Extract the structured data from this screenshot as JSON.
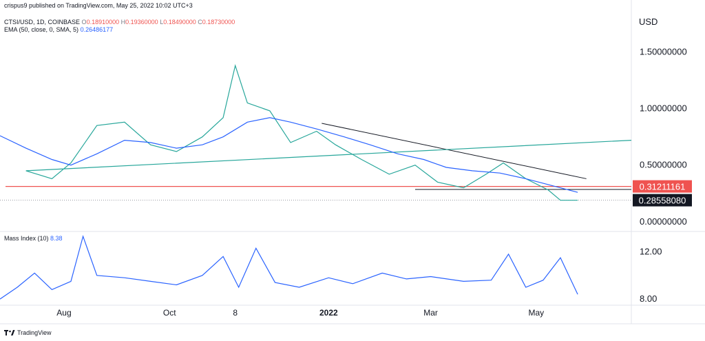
{
  "publisher": "crispus9 published on TradingView.com, May 25, 2022 10:02 UTC+3",
  "header": {
    "symbol": "CTSI/USD, 1D, COINBASE",
    "ohlc": [
      {
        "k": "O",
        "v": "0.18910000"
      },
      {
        "k": "H",
        "v": "0.19360000"
      },
      {
        "k": "L",
        "v": "0.18490000"
      },
      {
        "k": "C",
        "v": "0.18730000"
      }
    ],
    "ema_label": "EMA (50, close, 0, SMA, 5)",
    "ema_value": "0.26486177"
  },
  "mass_index": {
    "label": "Mass Index (10)",
    "value": "8.38"
  },
  "footer": {
    "brand": "TradingView"
  },
  "colors": {
    "up": "#26a69a",
    "down": "#ef5350",
    "ema": "#2962ff",
    "support": "#ef5350",
    "trend": "#131722",
    "mass": "#2962ff"
  },
  "chart_data": [
    {
      "type": "line",
      "series": [
        {
          "name": "CTSI/USD",
          "x": [
            "2022-06-25",
            "2021-07-10",
            "2021-07-25",
            "2021-08-05",
            "2021-08-20",
            "2021-09-05",
            "2021-09-20",
            "2021-10-05",
            "2021-10-20",
            "2021-11-01",
            "2021-11-08",
            "2021-11-15",
            "2021-11-28",
            "2021-12-10",
            "2021-12-25",
            "2022-01-05",
            "2022-01-20",
            "2022-02-05",
            "2022-02-20",
            "2022-03-05",
            "2022-03-20",
            "2022-04-02",
            "2022-04-12",
            "2022-04-25",
            "2022-05-08",
            "2022-05-15",
            "2022-05-25"
          ],
          "values": [
            0.72,
            0.45,
            0.38,
            0.52,
            0.85,
            0.88,
            0.68,
            0.62,
            0.75,
            0.92,
            1.38,
            1.05,
            0.98,
            0.7,
            0.8,
            0.68,
            0.55,
            0.42,
            0.5,
            0.35,
            0.3,
            0.42,
            0.52,
            0.38,
            0.28,
            0.19,
            0.19
          ]
        },
        {
          "name": "EMA (50, close, 0, SMA, 5)",
          "x": [
            "2021-06-25",
            "2021-07-10",
            "2021-07-25",
            "2021-08-05",
            "2021-08-20",
            "2021-09-05",
            "2021-09-20",
            "2021-10-05",
            "2021-10-20",
            "2021-11-01",
            "2021-11-15",
            "2021-11-28",
            "2021-12-10",
            "2021-12-25",
            "2022-01-10",
            "2022-01-25",
            "2022-02-10",
            "2022-02-25",
            "2022-03-10",
            "2022-03-25",
            "2022-04-10",
            "2022-04-25",
            "2022-05-10",
            "2022-05-25"
          ],
          "values": [
            0.76,
            0.65,
            0.55,
            0.5,
            0.6,
            0.72,
            0.7,
            0.65,
            0.68,
            0.75,
            0.88,
            0.92,
            0.88,
            0.82,
            0.75,
            0.68,
            0.6,
            0.55,
            0.48,
            0.45,
            0.43,
            0.38,
            0.32,
            0.26
          ]
        }
      ],
      "xticks": [
        "Aug",
        "Oct",
        "8",
        "2022",
        "Mar",
        "May"
      ],
      "yticks": [
        "1.50000000",
        "1.00000000",
        "0.50000000",
        "0.00000000"
      ],
      "ylabel": "USD",
      "ylim": [
        -0.08,
        1.85
      ],
      "price_labels": [
        {
          "value": 0.31211161,
          "label": "0.31211161",
          "color": "#ef5350"
        },
        {
          "value": 0.2855808,
          "label": "0.28558080",
          "color": "#131722"
        }
      ],
      "annotations": [
        {
          "kind": "horizontal",
          "value": 0.31211161,
          "color": "#ef5350"
        },
        {
          "kind": "horizontal",
          "value": 0.2855808,
          "color": "#131722"
        },
        {
          "kind": "trendline",
          "from": {
            "x": "2021-12-28",
            "y": 0.87
          },
          "to": {
            "x": "2022-05-30",
            "y": 0.38
          }
        }
      ]
    },
    {
      "type": "line",
      "series": [
        {
          "name": "Mass Index (10)",
          "x": [
            "2021-06-25",
            "2021-07-05",
            "2021-07-15",
            "2021-07-25",
            "2021-08-05",
            "2021-08-12",
            "2021-08-20",
            "2021-09-05",
            "2021-09-20",
            "2021-10-05",
            "2021-10-20",
            "2021-11-01",
            "2021-11-10",
            "2021-11-20",
            "2021-12-01",
            "2021-12-15",
            "2022-01-01",
            "2022-01-15",
            "2022-02-01",
            "2022-02-15",
            "2022-03-01",
            "2022-03-20",
            "2022-04-05",
            "2022-04-15",
            "2022-04-25",
            "2022-05-05",
            "2022-05-15",
            "2022-05-25"
          ],
          "values": [
            8.0,
            9.0,
            10.2,
            8.8,
            9.5,
            13.3,
            10.0,
            9.8,
            9.5,
            9.2,
            10.0,
            11.6,
            9.0,
            12.3,
            9.4,
            9.0,
            9.8,
            9.3,
            10.2,
            9.7,
            9.9,
            9.5,
            9.6,
            11.8,
            9.0,
            9.6,
            11.5,
            8.4
          ]
        }
      ],
      "yticks": [
        "12.00",
        "8.00"
      ],
      "ylim": [
        7.6,
        13.6
      ]
    }
  ]
}
